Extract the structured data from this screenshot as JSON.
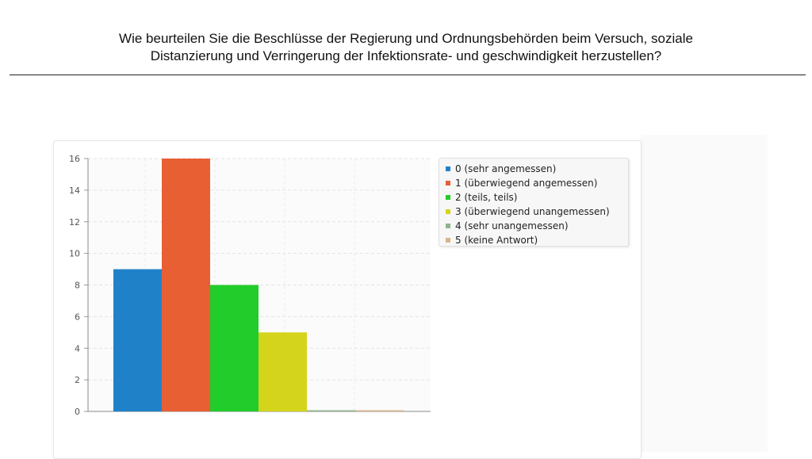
{
  "question": {
    "line1": "Wie beurteilen Sie die Beschlüsse der Regierung und Ordnungsbehörden beim Versuch, soziale",
    "line2": "Distanzierung und Verringerung der Infektionsrate- und geschwindigkeit herzustellen?"
  },
  "chart_data": {
    "type": "bar",
    "title": "",
    "xlabel": "",
    "ylabel": "",
    "ylim": [
      0,
      16
    ],
    "yticks": [
      "0",
      "2",
      "4",
      "6",
      "8",
      "10",
      "12",
      "14",
      "16"
    ],
    "grid": true,
    "legend_position": "right",
    "categories": [
      "0 (sehr angemessen)",
      "1 (überwiegend angemessen)",
      "2 (teils, teils)",
      "3 (überwiegend unangemessen)",
      "4 (sehr unangemessen)",
      "5 (keine Antwort)"
    ],
    "values": [
      9,
      16,
      8,
      5,
      0,
      0
    ],
    "colors": [
      "#1f82c9",
      "#e85f33",
      "#22cc2a",
      "#d4d41c",
      "#8fb58f",
      "#d8b48a"
    ]
  }
}
